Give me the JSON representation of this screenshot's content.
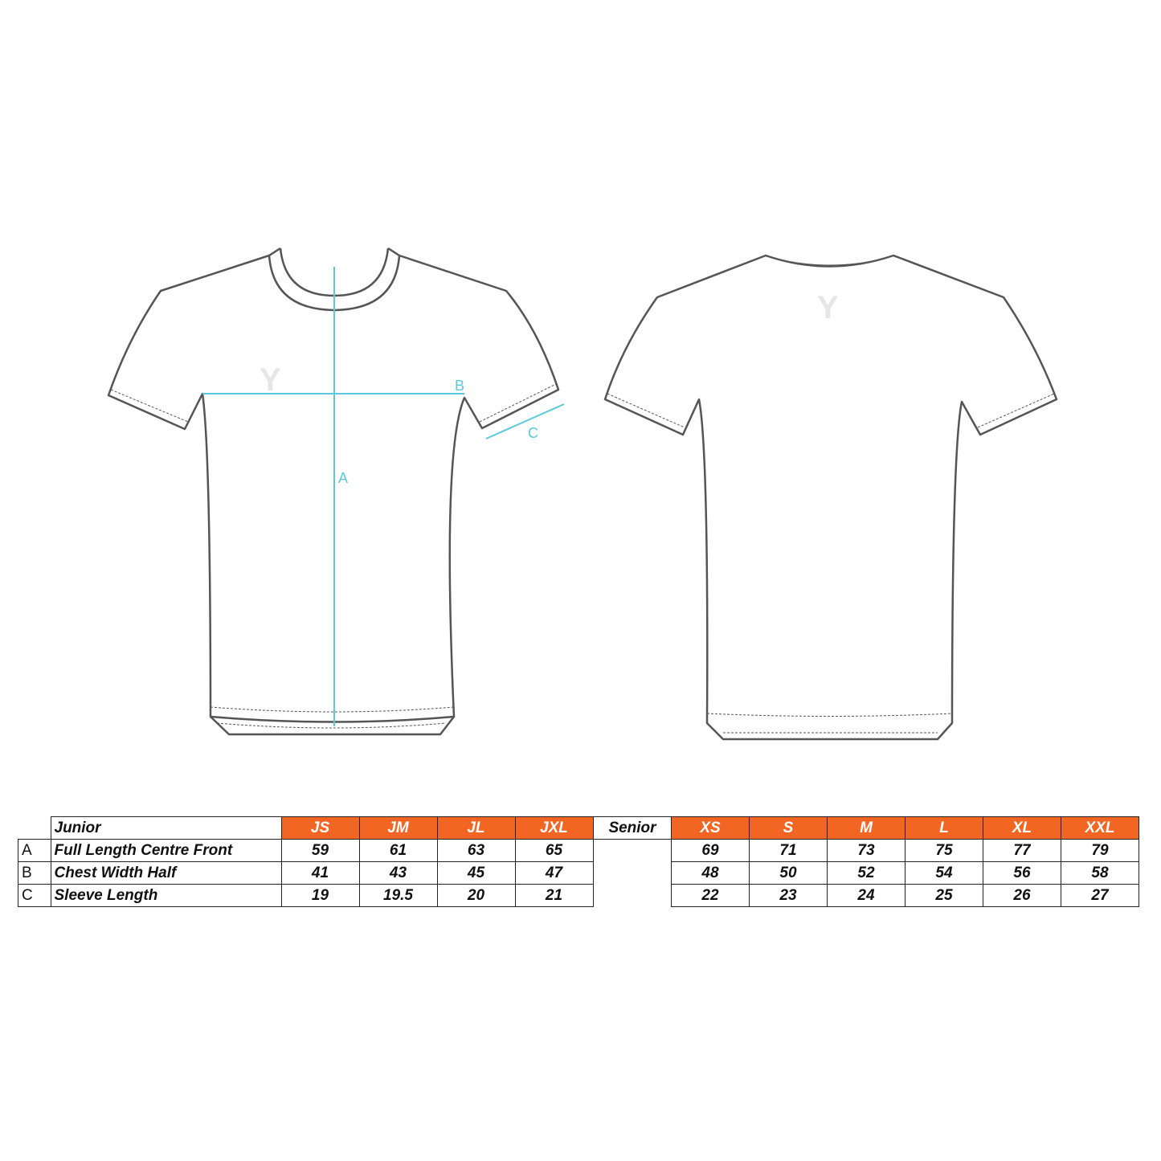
{
  "diagram": {
    "measure_color": "#5bc8dc",
    "outline_color": "#555555",
    "labels": {
      "a": "A",
      "b": "B",
      "c": "C"
    },
    "logo_mark": "Y"
  },
  "header_color": "#f26522",
  "junior": {
    "title": "Junior",
    "sizes": [
      "JS",
      "JM",
      "JL",
      "JXL"
    ],
    "rows": [
      {
        "letter": "A",
        "label": "Full Length Centre Front",
        "values": [
          "59",
          "61",
          "63",
          "65"
        ]
      },
      {
        "letter": "B",
        "label": "Chest Width Half",
        "values": [
          "41",
          "43",
          "45",
          "47"
        ]
      },
      {
        "letter": "C",
        "label": "Sleeve Length",
        "values": [
          "19",
          "19.5",
          "20",
          "21"
        ]
      }
    ]
  },
  "senior": {
    "title": "Senior",
    "sizes": [
      "XS",
      "S",
      "M",
      "L",
      "XL",
      "XXL"
    ],
    "rows": [
      {
        "values": [
          "69",
          "71",
          "73",
          "75",
          "77",
          "79"
        ]
      },
      {
        "values": [
          "48",
          "50",
          "52",
          "54",
          "56",
          "58"
        ]
      },
      {
        "values": [
          "22",
          "23",
          "24",
          "25",
          "26",
          "27"
        ]
      }
    ]
  }
}
